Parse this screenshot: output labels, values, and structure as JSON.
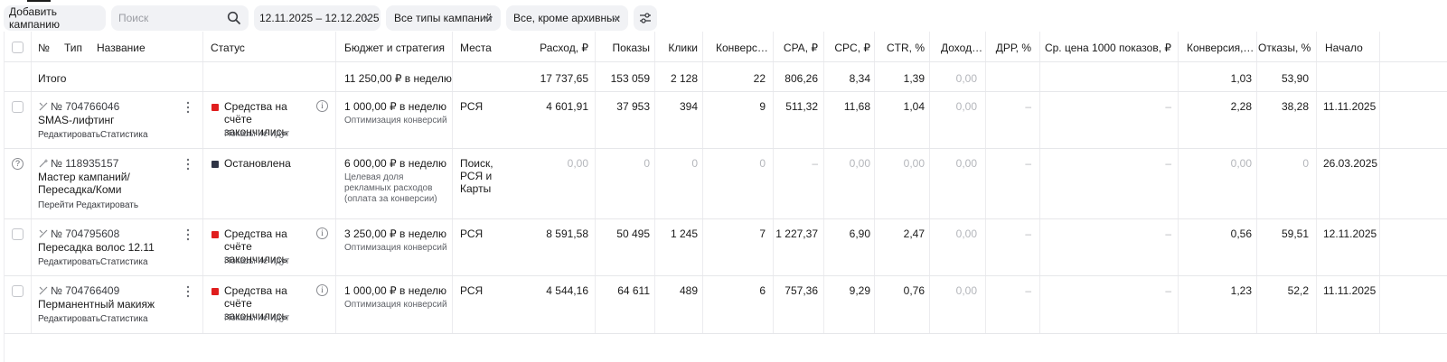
{
  "toolbar": {
    "add_campaign": "Добавить кампанию",
    "search_placeholder": "Поиск",
    "date_range": "12.11.2025 – 12.12.2025",
    "campaign_types": "Все типы кампаний",
    "archive_filter": "Все, кроме архивных"
  },
  "header": {
    "num": "№",
    "type": "Тип",
    "name": "Название",
    "status": "Статус",
    "budget": "Бюджет и стратегия",
    "places": "Места",
    "spend": "Расход, ₽",
    "impressions": "Показы",
    "clicks": "Клики",
    "conversions": "Конверс…",
    "cpa": "CPA, ₽",
    "cpc": "CPC, ₽",
    "ctr": "CTR, %",
    "income": "Доход…",
    "drr": "ДРР, %",
    "cpm": "Ср. цена 1000 показов, ₽",
    "conv_rate": "Конверсия,…",
    "bounce": "Отказы, %",
    "start": "Начало"
  },
  "total": {
    "label": "Итого",
    "budget": "11 250,00 ₽ в неделю",
    "spend": "17 737,65",
    "impressions": "153 059",
    "clicks": "2 128",
    "conversions": "22",
    "cpa": "806,26",
    "cpc": "8,34",
    "ctr": "1,39",
    "income": "0,00",
    "conv_rate": "1,03",
    "bounce": "53,90"
  },
  "rows": [
    {
      "id": "№ 704766046",
      "name": "SMAS-лифтинг",
      "link1": "Редактировать",
      "link2": "Статистика",
      "status": "Средства на счёте закончились",
      "status_sub": "Показы не идут",
      "status_color": "#e01e1e",
      "budget": "1 000,00 ₽ в неделю",
      "strategy": "Оптимизация конверсий",
      "places": "РСЯ",
      "spend": "4 601,91",
      "impressions": "37 953",
      "clicks": "394",
      "conversions": "9",
      "cpa": "511,32",
      "cpc": "11,68",
      "ctr": "1,04",
      "income": "0,00",
      "drr": "–",
      "cpm": "–",
      "conv_rate": "2,28",
      "bounce": "38,28",
      "start": "11.11.2025"
    },
    {
      "id": "№ 118935157",
      "name": "Мастер кампаний/Пересадка/Коми",
      "link1": "Перейти",
      "link2": "Редактировать",
      "status": "Остановлена",
      "status_sub": "",
      "status_color": "#2f3445",
      "budget": "6 000,00 ₽ в неделю",
      "strategy": "Целевая доля рекламных расходов (оплата за конверсии)",
      "places": "Поиск, РСЯ и Карты",
      "spend": "0,00",
      "impressions": "0",
      "clicks": "0",
      "conversions": "0",
      "cpa": "–",
      "cpc": "0,00",
      "ctr": "0,00",
      "income": "0,00",
      "drr": "–",
      "cpm": "–",
      "conv_rate": "0,00",
      "bounce": "0",
      "start": "26.03.2025"
    },
    {
      "id": "№ 704795608",
      "name": "Пересадка волос 12.11",
      "link1": "Редактировать",
      "link2": "Статистика",
      "status": "Средства на счёте закончились",
      "status_sub": "Показы не идут",
      "status_color": "#e01e1e",
      "budget": "3 250,00 ₽ в неделю",
      "strategy": "Оптимизация конверсий",
      "places": "РСЯ",
      "spend": "8 591,58",
      "impressions": "50 495",
      "clicks": "1 245",
      "conversions": "7",
      "cpa": "1 227,37",
      "cpc": "6,90",
      "ctr": "2,47",
      "income": "0,00",
      "drr": "–",
      "cpm": "–",
      "conv_rate": "0,56",
      "bounce": "59,51",
      "start": "12.11.2025"
    },
    {
      "id": "№ 704766409",
      "name": "Перманентный макияж",
      "link1": "Редактировать",
      "link2": "Статистика",
      "status": "Средства на счёте закончились",
      "status_sub": "Показы не идут",
      "status_color": "#e01e1e",
      "budget": "1 000,00 ₽ в неделю",
      "strategy": "Оптимизация конверсий",
      "places": "РСЯ",
      "spend": "4 544,16",
      "impressions": "64 611",
      "clicks": "489",
      "conversions": "6",
      "cpa": "757,36",
      "cpc": "9,29",
      "ctr": "0,76",
      "income": "0,00",
      "drr": "–",
      "cpm": "–",
      "conv_rate": "1,23",
      "bounce": "52,2",
      "start": "11.11.2025"
    }
  ]
}
